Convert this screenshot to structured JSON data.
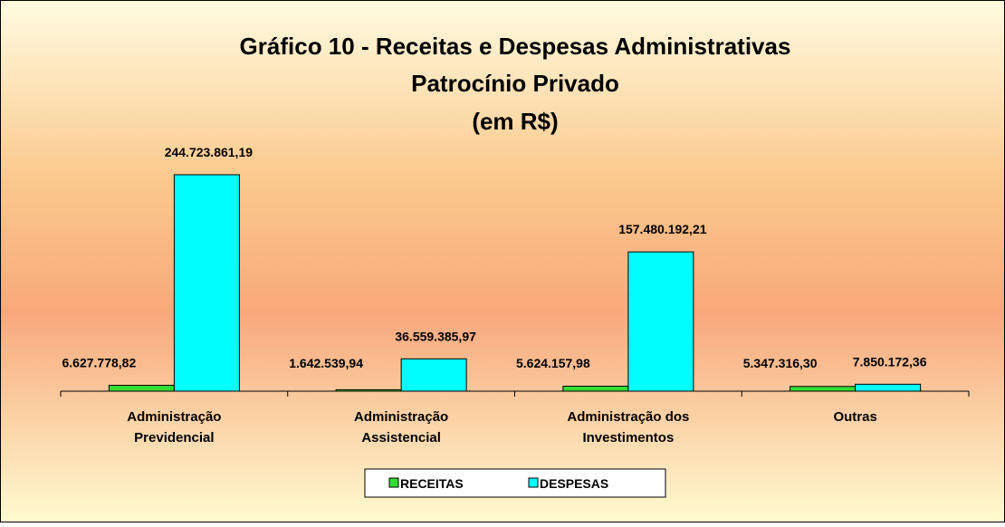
{
  "chart_data": {
    "type": "bar",
    "title": "Gráfico 10 - Receitas e Despesas Administrativas",
    "subtitle": [
      "Patrocínio Privado",
      "(em R$)"
    ],
    "categories": [
      [
        "Administração",
        "Previdencial"
      ],
      [
        "Administração",
        "Assistencial"
      ],
      [
        "Administração dos",
        "Investimentos"
      ],
      [
        "Outras"
      ]
    ],
    "series": [
      {
        "name": "RECEITAS",
        "color": "#33dd33",
        "values": [
          6627778.82,
          1642539.94,
          5624157.98,
          5347316.3
        ],
        "value_labels": [
          "6.627.778,82",
          "1.642.539,94",
          "5.624.157,98",
          "5.347.316,30"
        ]
      },
      {
        "name": "DESPESAS",
        "color": "#00ffff",
        "values": [
          244723861.19,
          36559385.97,
          157480192.21,
          7850172.36
        ],
        "value_labels": [
          "244.723.861,19",
          "36.559.385,97",
          "157.480.192,21",
          "7.850.172,36"
        ]
      }
    ],
    "ylim": [
      0,
      300000000
    ],
    "legend": "bottom"
  }
}
